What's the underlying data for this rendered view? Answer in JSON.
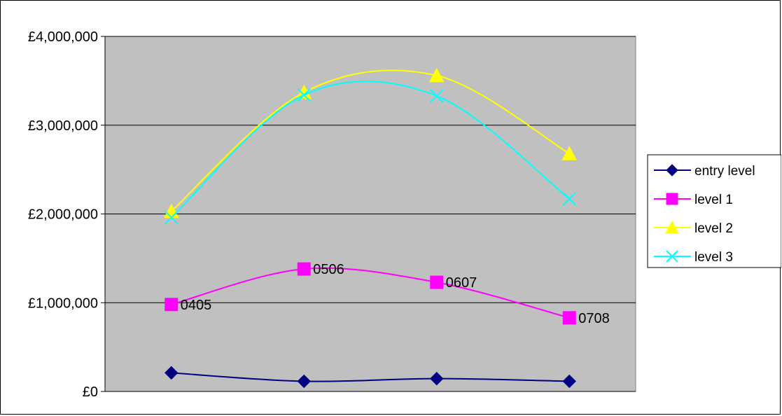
{
  "chart_data": {
    "type": "line",
    "title": "",
    "xlabel": "",
    "ylabel": "",
    "categories": [
      "0405",
      "0506",
      "0607",
      "0708"
    ],
    "y_ticks": [
      "£0",
      "£1,000,000",
      "£2,000,000",
      "£3,000,000",
      "£4,000,000"
    ],
    "ylim": [
      0,
      4000000
    ],
    "grid": "horizontal",
    "plot_background": "#c0c0c0",
    "legend_position": "right",
    "data_labels_series": "level 1",
    "series": [
      {
        "name": "entry level",
        "values": [
          210000,
          115000,
          145000,
          115000
        ],
        "color": "#000080",
        "marker": "diamond"
      },
      {
        "name": "level 1",
        "values": [
          980000,
          1380000,
          1230000,
          830000
        ],
        "color": "#ff00ff",
        "marker": "square"
      },
      {
        "name": "level 2",
        "values": [
          2030000,
          3370000,
          3560000,
          2680000
        ],
        "color": "#ffff00",
        "marker": "triangle"
      },
      {
        "name": "level 3",
        "values": [
          1960000,
          3340000,
          3330000,
          2170000
        ],
        "color": "#00ffff",
        "marker": "x"
      }
    ]
  }
}
